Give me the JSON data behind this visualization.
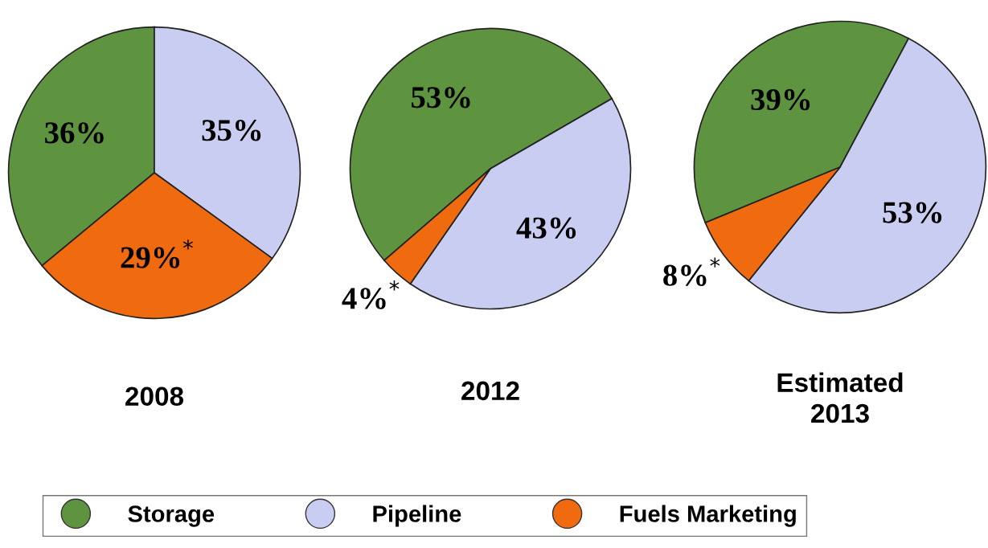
{
  "chart_data": [
    {
      "type": "pie",
      "title": "2008",
      "categories": [
        "Storage",
        "Pipeline",
        "Fuels Marketing"
      ],
      "values": [
        36,
        35,
        29
      ],
      "colors": [
        "#5e9440",
        "#c9cdf2",
        "#f06a10"
      ],
      "value_labels": [
        "36%",
        "35%",
        "29%$^{*}$"
      ],
      "legend": "bottom"
    },
    {
      "type": "pie",
      "title": "2012",
      "categories": [
        null,
        null,
        null
      ],
      "values": [
        53,
        43,
        4
      ],
      "colors": [
        "#5e9440",
        "#c9cdf2",
        "#f06a10"
      ],
      "value_labels": [
        "53%",
        "43%",
        "4%$^{*}$"
      ]
    },
    {
      "type": "pie",
      "title": "Estimated\n2013",
      "categories": [
        null,
        null,
        null
      ],
      "values": [
        39,
        53,
        8
      ],
      "colors": [
        "#5e9440",
        "#c9cdf2",
        "#f06a10"
      ],
      "value_labels": [
        "39%",
        "53%",
        "8%$^{*}$"
      ]
    }
  ]
}
